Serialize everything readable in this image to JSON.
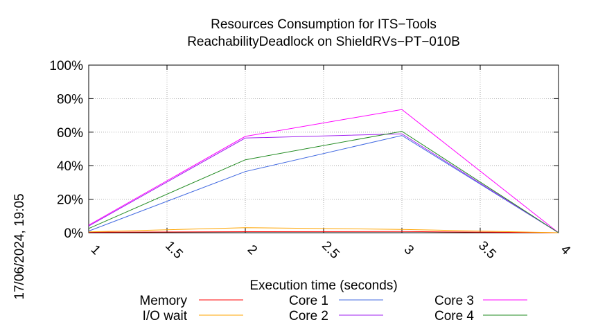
{
  "chart_data": {
    "type": "line",
    "title": "Resources Consumption for ITS−Tools",
    "subtitle": "ReachabilityDeadlock on ShieldRVs−PT−010B",
    "xlabel": "Execution time (seconds)",
    "ylabel": "",
    "xlim": [
      1,
      4
    ],
    "ylim": [
      0,
      100
    ],
    "x_ticks": [
      1,
      1.5,
      2,
      2.5,
      3,
      3.5,
      4
    ],
    "x_tick_labels": [
      "1",
      "1.5",
      "2",
      "2.5",
      "3",
      "3.5",
      "4"
    ],
    "y_ticks": [
      0,
      20,
      40,
      60,
      80,
      100
    ],
    "y_tick_labels": [
      "0%",
      "20%",
      "40%",
      "60%",
      "80%",
      "100%"
    ],
    "grid": true,
    "legend_position": "bottom",
    "timestamp": "17/06/2024, 19:05",
    "x": [
      1,
      2,
      3,
      4
    ],
    "series": [
      {
        "name": "Memory",
        "color": "#ff0000",
        "values": [
          0.3,
          0.6,
          0.7,
          0
        ]
      },
      {
        "name": "I/O wait",
        "color": "#ffa500",
        "values": [
          0.5,
          3,
          2,
          0
        ]
      },
      {
        "name": "Core 1",
        "color": "#4169e1",
        "values": [
          1,
          36.5,
          58,
          0
        ]
      },
      {
        "name": "Core 2",
        "color": "#a020f0",
        "values": [
          4,
          56.5,
          59,
          0
        ]
      },
      {
        "name": "Core 3",
        "color": "#ff00ff",
        "values": [
          4.5,
          57.5,
          73.5,
          0
        ]
      },
      {
        "name": "Core 4",
        "color": "#228b22",
        "values": [
          2.5,
          43.5,
          60.5,
          0
        ]
      }
    ]
  }
}
